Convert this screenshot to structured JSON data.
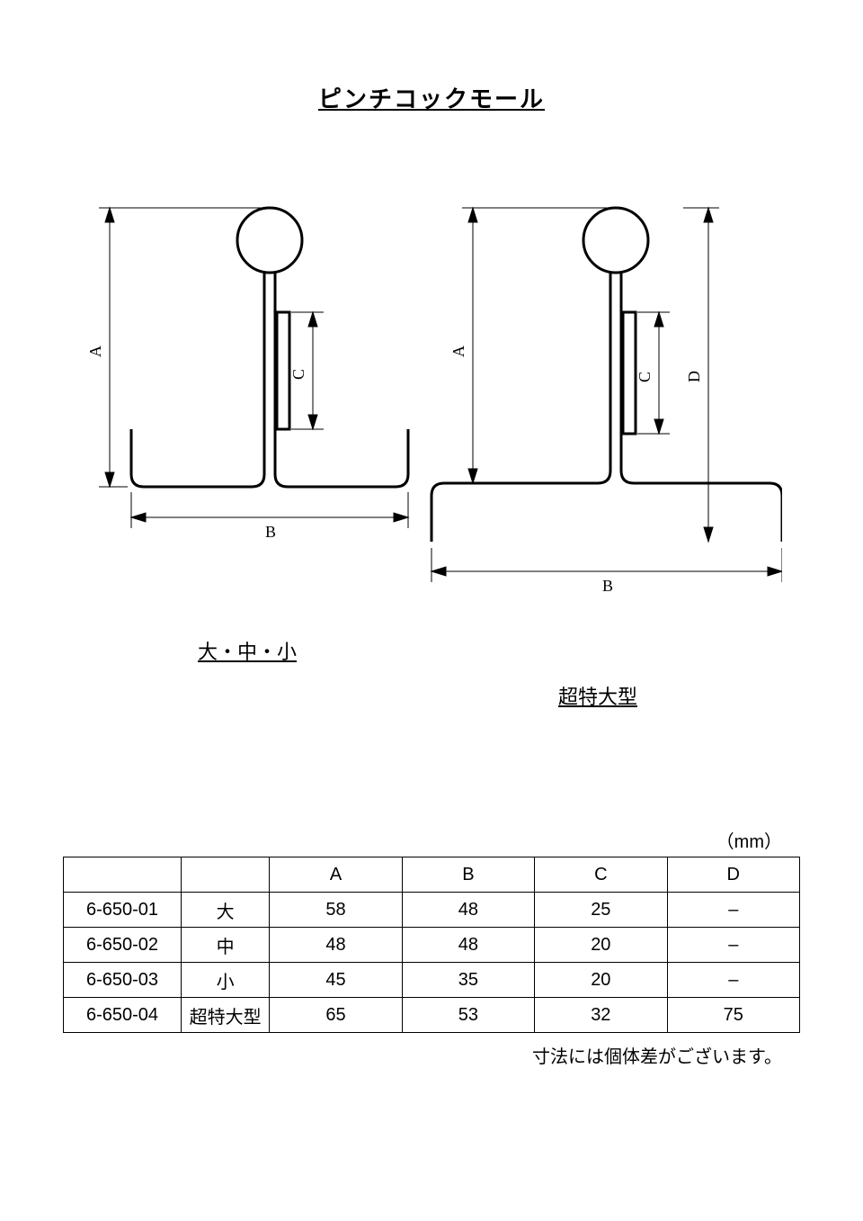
{
  "title": "ピンチコックモール",
  "figures": {
    "left": {
      "caption": "大・中・小",
      "dims": [
        "A",
        "B",
        "C"
      ]
    },
    "right": {
      "caption": "超特大型",
      "dims": [
        "A",
        "B",
        "C",
        "D"
      ]
    }
  },
  "table": {
    "unit_label": "（mm）",
    "columns": [
      "",
      "",
      "A",
      "B",
      "C",
      "D"
    ],
    "col_widths_pct": [
      16,
      12,
      18,
      18,
      18,
      18
    ],
    "rows": [
      [
        "6-650-01",
        "大",
        "58",
        "48",
        "25",
        "–"
      ],
      [
        "6-650-02",
        "中",
        "48",
        "48",
        "20",
        "–"
      ],
      [
        "6-650-03",
        "小",
        "45",
        "35",
        "20",
        "–"
      ],
      [
        "6-650-04",
        "超特大型",
        "65",
        "53",
        "32",
        "75"
      ]
    ]
  },
  "note": "寸法には個体差がございます。",
  "colors": {
    "stroke": "#000000",
    "bg": "#ffffff"
  },
  "line_width_main": 3,
  "line_width_dim": 1
}
